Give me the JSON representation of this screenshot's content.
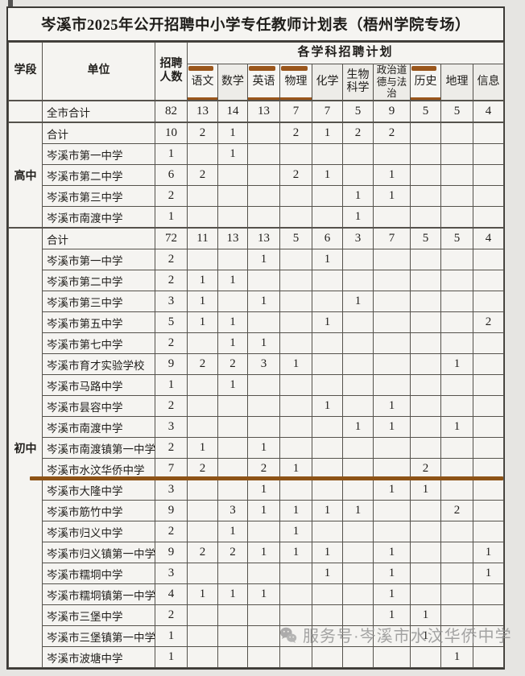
{
  "title": "岑溪市2025年公开招聘中小学专任教师计划表（梧州学院专场）",
  "header": {
    "stage_label": "学段",
    "unit_label": "单位",
    "count_label": "招聘人数",
    "subjects_group_label": "各学科招聘计划",
    "subjects": [
      "语文",
      "数学",
      "英语",
      "物理",
      "化学",
      "生物科学",
      "政治道德与法治",
      "历史",
      "地理",
      "信息"
    ],
    "highlighted_subject_indexes": [
      0,
      2,
      3,
      7
    ]
  },
  "citywide_total": {
    "label": "全市合计",
    "count": 82,
    "values": [
      13,
      14,
      13,
      7,
      7,
      5,
      9,
      5,
      5,
      4
    ]
  },
  "sections": [
    {
      "stage": "高中",
      "rows": [
        {
          "label": "合计",
          "count": 10,
          "values": [
            2,
            1,
            "",
            2,
            1,
            2,
            2,
            "",
            "",
            ""
          ]
        },
        {
          "label": "岑溪市第一中学",
          "count": 1,
          "values": [
            "",
            1,
            "",
            "",
            "",
            "",
            "",
            "",
            "",
            ""
          ]
        },
        {
          "label": "岑溪市第二中学",
          "count": 6,
          "values": [
            2,
            "",
            "",
            2,
            1,
            "",
            1,
            "",
            "",
            ""
          ]
        },
        {
          "label": "岑溪市第三中学",
          "count": 2,
          "values": [
            "",
            "",
            "",
            "",
            "",
            1,
            1,
            "",
            "",
            ""
          ]
        },
        {
          "label": "岑溪市南渡中学",
          "count": 1,
          "values": [
            "",
            "",
            "",
            "",
            "",
            1,
            "",
            "",
            "",
            ""
          ]
        }
      ]
    },
    {
      "stage": "初中",
      "rows": [
        {
          "label": "合计",
          "count": 72,
          "values": [
            11,
            13,
            13,
            5,
            6,
            3,
            7,
            5,
            5,
            4
          ]
        },
        {
          "label": "岑溪市第一中学",
          "count": 2,
          "values": [
            "",
            "",
            1,
            "",
            1,
            "",
            "",
            "",
            "",
            ""
          ]
        },
        {
          "label": "岑溪市第二中学",
          "count": 2,
          "values": [
            1,
            1,
            "",
            "",
            "",
            "",
            "",
            "",
            "",
            ""
          ]
        },
        {
          "label": "岑溪市第三中学",
          "count": 3,
          "values": [
            1,
            "",
            1,
            "",
            "",
            1,
            "",
            "",
            "",
            ""
          ]
        },
        {
          "label": "岑溪市第五中学",
          "count": 5,
          "values": [
            1,
            1,
            "",
            "",
            1,
            "",
            "",
            "",
            "",
            2
          ]
        },
        {
          "label": "岑溪市第七中学",
          "count": 2,
          "values": [
            "",
            1,
            1,
            "",
            "",
            "",
            "",
            "",
            "",
            ""
          ]
        },
        {
          "label": "岑溪市育才实验学校",
          "count": 9,
          "values": [
            2,
            2,
            3,
            1,
            "",
            "",
            "",
            "",
            1,
            ""
          ]
        },
        {
          "label": "岑溪市马路中学",
          "count": 1,
          "values": [
            "",
            1,
            "",
            "",
            "",
            "",
            "",
            "",
            "",
            ""
          ]
        },
        {
          "label": "岑溪市昙容中学",
          "count": 2,
          "values": [
            "",
            "",
            "",
            "",
            1,
            "",
            1,
            "",
            "",
            ""
          ]
        },
        {
          "label": "岑溪市南渡中学",
          "count": 3,
          "values": [
            "",
            "",
            "",
            "",
            "",
            1,
            1,
            "",
            1,
            ""
          ]
        },
        {
          "label": "岑溪市南渡镇第一中学",
          "count": 2,
          "values": [
            1,
            "",
            1,
            "",
            "",
            "",
            "",
            "",
            "",
            ""
          ]
        },
        {
          "label": "岑溪市水汶华侨中学",
          "count": 7,
          "values": [
            2,
            "",
            2,
            1,
            "",
            "",
            "",
            2,
            "",
            ""
          ]
        },
        {
          "label": "岑溪市大隆中学",
          "count": 3,
          "values": [
            "",
            "",
            1,
            "",
            "",
            "",
            1,
            1,
            "",
            ""
          ]
        },
        {
          "label": "岑溪市筋竹中学",
          "count": 9,
          "values": [
            "",
            3,
            1,
            1,
            1,
            1,
            "",
            "",
            2,
            ""
          ]
        },
        {
          "label": "岑溪市归义中学",
          "count": 2,
          "values": [
            "",
            1,
            "",
            1,
            "",
            "",
            "",
            "",
            "",
            ""
          ]
        },
        {
          "label": "岑溪市归义镇第一中学",
          "count": 9,
          "values": [
            2,
            2,
            1,
            1,
            1,
            "",
            1,
            "",
            "",
            1
          ]
        },
        {
          "label": "岑溪市糯垌中学",
          "count": 3,
          "values": [
            "",
            "",
            "",
            "",
            1,
            "",
            1,
            "",
            "",
            1
          ]
        },
        {
          "label": "岑溪市糯垌镇第一中学",
          "count": 4,
          "values": [
            1,
            1,
            1,
            "",
            "",
            "",
            1,
            "",
            "",
            ""
          ]
        },
        {
          "label": "岑溪市三堡中学",
          "count": 2,
          "values": [
            "",
            "",
            "",
            "",
            "",
            "",
            1,
            1,
            "",
            ""
          ]
        },
        {
          "label": "岑溪市三堡镇第一中学",
          "count": 1,
          "values": [
            "",
            "",
            "",
            "",
            "",
            "",
            "",
            1,
            "",
            ""
          ]
        },
        {
          "label": "岑溪市波塘中学",
          "count": 1,
          "values": [
            "",
            "",
            "",
            "",
            "",
            "",
            "",
            "",
            1,
            ""
          ]
        }
      ]
    }
  ],
  "annotations": {
    "underline_after_row": "岑溪市水汶华侨中学"
  },
  "watermark": {
    "icon": "wechat-service-icon",
    "text": "服务号·岑溪市水汶华侨中学"
  },
  "colors": {
    "highlight_bar": "#9a561c",
    "underline": "#8d5316",
    "page_background": "#e6e5e2",
    "cell_background": "#f5f4f1",
    "header_shade": "#edece8",
    "border": "#55524c",
    "watermark_gray": "#8f8f8f"
  }
}
